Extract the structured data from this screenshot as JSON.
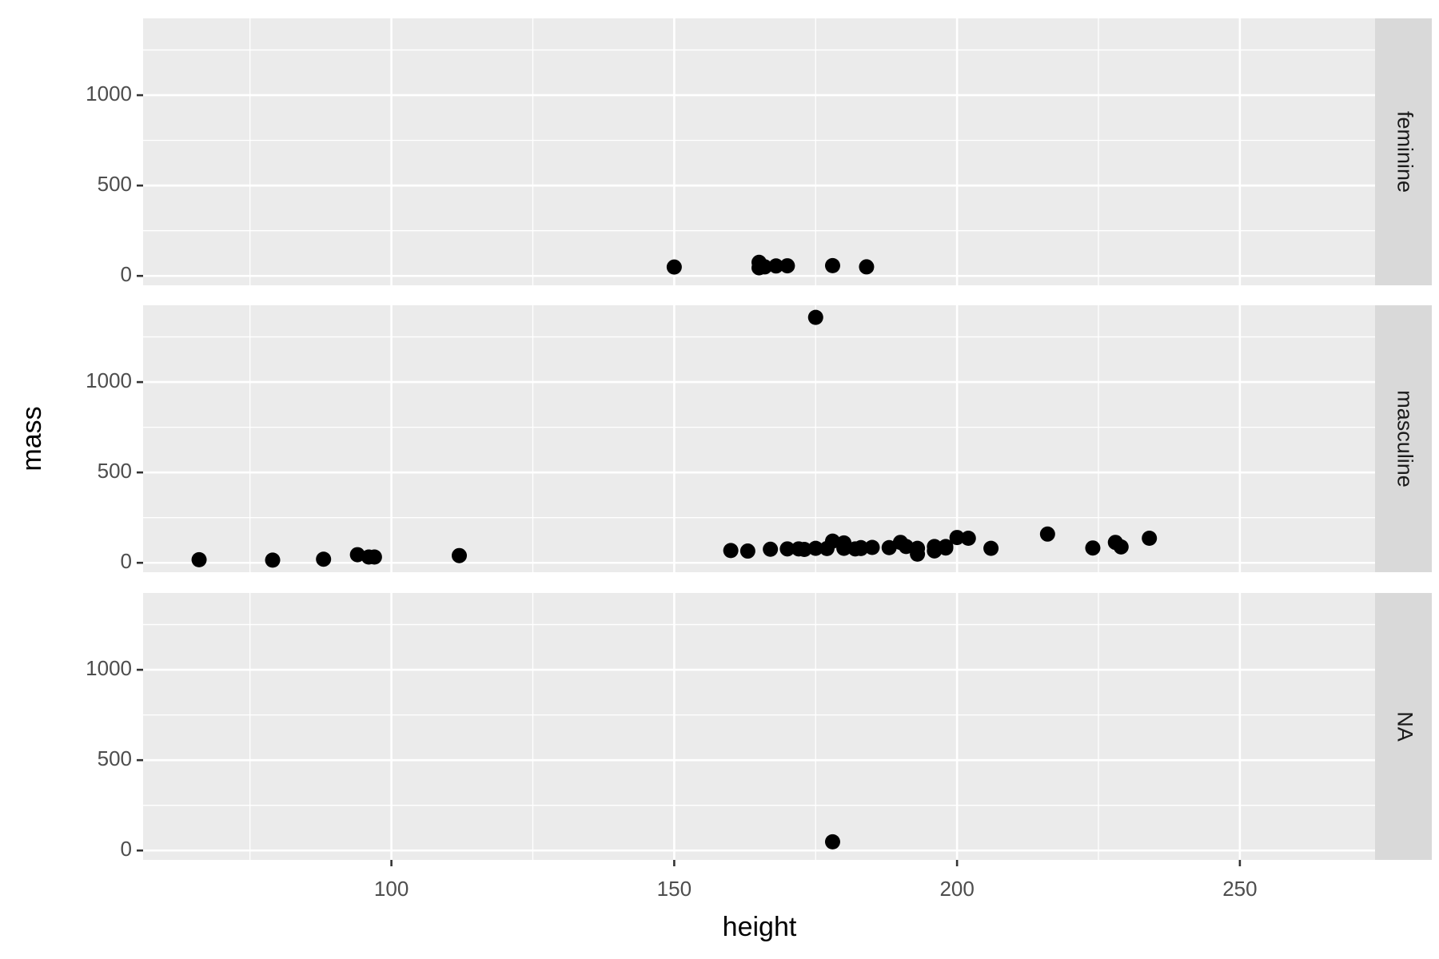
{
  "chart_data": {
    "type": "scatter",
    "x_label": "height",
    "y_label": "mass",
    "xlim": [
      56.1,
      273.9
    ],
    "ylim": [
      -52,
      1425
    ],
    "xticks": [
      100,
      150,
      200,
      250
    ],
    "yticks": [
      0,
      500,
      1000
    ],
    "grid": true,
    "color": "#000000",
    "facet_strip": "right",
    "facets": [
      {
        "name": "feminine",
        "x": [
          150,
          165,
          165,
          166,
          168,
          170,
          178,
          184
        ],
        "values": [
          49,
          75,
          45,
          50,
          55,
          56,
          57,
          50
        ]
      },
      {
        "name": "masculine",
        "x": [
          66,
          79,
          88,
          94,
          96,
          97,
          112,
          160,
          163,
          167,
          170,
          172,
          173,
          175,
          175,
          177,
          178,
          180,
          180,
          182,
          183,
          183,
          185,
          188,
          190,
          191,
          193,
          193,
          196,
          196,
          198,
          198,
          200,
          202,
          206,
          216,
          224,
          228,
          229,
          234
        ],
        "values": [
          17,
          15,
          20,
          45,
          32,
          32,
          40,
          68,
          65,
          75,
          77,
          77,
          74,
          1358,
          80,
          79,
          120,
          110,
          80,
          77,
          79,
          84,
          85,
          84,
          113,
          90,
          48,
          80,
          66,
          90,
          82,
          90,
          140,
          136,
          80,
          159,
          82,
          113,
          88,
          136
        ]
      },
      {
        "name": "NA",
        "x": [
          178
        ],
        "values": [
          48
        ]
      }
    ]
  }
}
